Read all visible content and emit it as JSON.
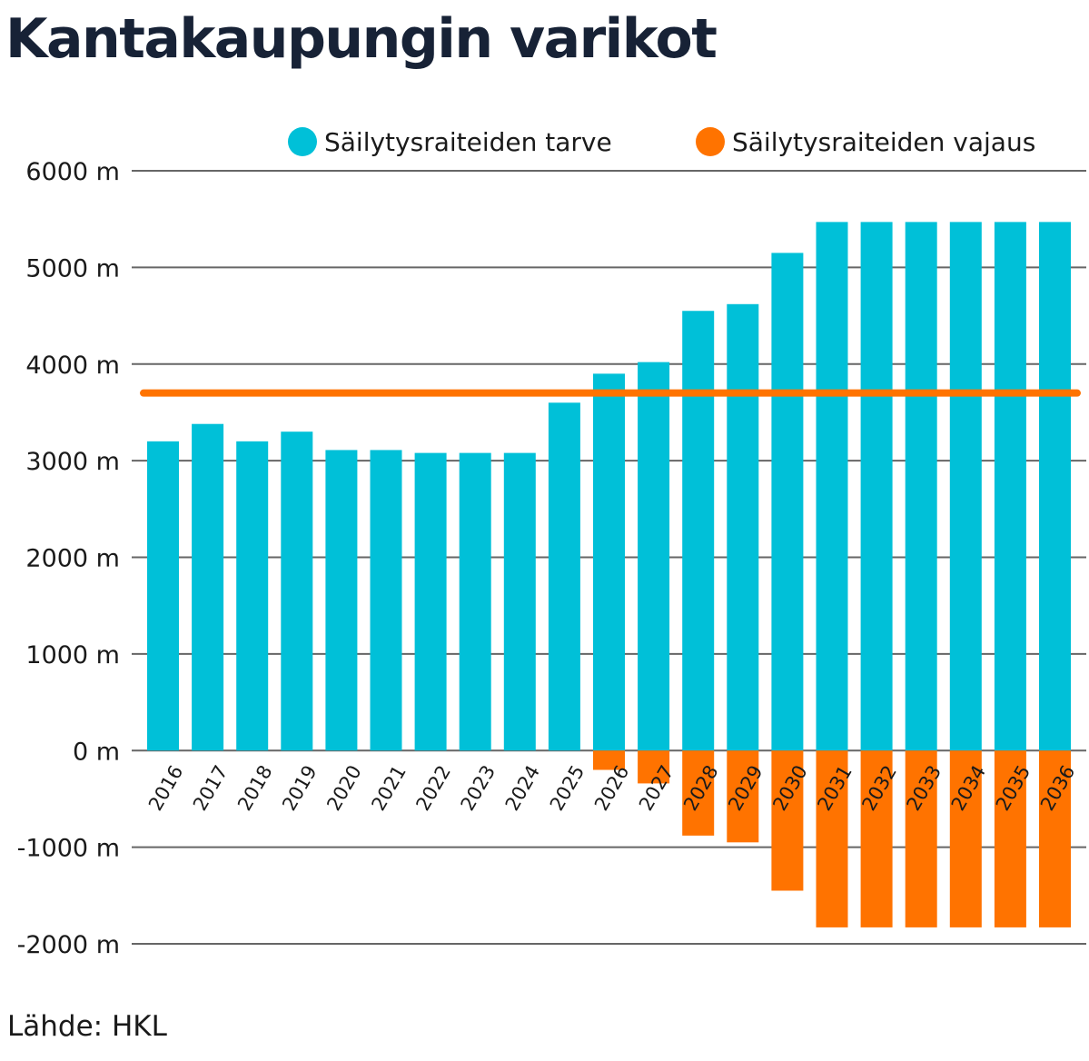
{
  "title": "Kantakaupungin varikot",
  "source": "Lähde: HKL",
  "chart_data": {
    "type": "bar",
    "categories": [
      "2016",
      "2017",
      "2018",
      "2019",
      "2020",
      "2021",
      "2022",
      "2023",
      "2024",
      "2025",
      "2026",
      "2027",
      "2028",
      "2029",
      "2030",
      "2031",
      "2032",
      "2033",
      "2034",
      "2035",
      "2036"
    ],
    "series": [
      {
        "name": "Säilytysraiteiden tarve",
        "color": "#00c0d8",
        "values": [
          3200,
          3380,
          3200,
          3300,
          3110,
          3110,
          3080,
          3080,
          3080,
          3600,
          3900,
          4020,
          4550,
          4620,
          5150,
          5470,
          5470,
          5470,
          5470,
          5470,
          5470
        ]
      },
      {
        "name": "Säilytysraiteiden vajaus",
        "color": "#ff7300",
        "values": [
          0,
          0,
          0,
          0,
          0,
          0,
          0,
          0,
          0,
          0,
          -200,
          -340,
          -880,
          -950,
          -1450,
          -1830,
          -1830,
          -1830,
          -1830,
          -1830,
          -1830
        ]
      }
    ],
    "reference_line": {
      "value": 3700,
      "color": "#ff7300"
    },
    "y_ticks": [
      {
        "value": 6000,
        "label": "6000 m"
      },
      {
        "value": 5000,
        "label": "5000 m"
      },
      {
        "value": 4000,
        "label": "4000 m"
      },
      {
        "value": 3000,
        "label": "3000 m"
      },
      {
        "value": 2000,
        "label": "2000 m"
      },
      {
        "value": 1000,
        "label": "1000 m"
      },
      {
        "value": 0,
        "label": "0 m"
      },
      {
        "value": -1000,
        "label": "-1000 m"
      },
      {
        "value": -2000,
        "label": "-2000 m"
      }
    ],
    "ylim": [
      -2000,
      6000
    ],
    "grid": true,
    "legend_position": "top-right",
    "xlabel": "",
    "ylabel": ""
  }
}
